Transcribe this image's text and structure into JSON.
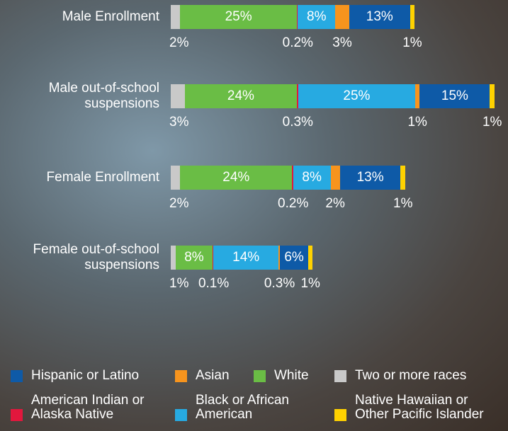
{
  "chart_data": {
    "type": "stacked_bar_horizontal",
    "categories": [
      "Male Enrollment",
      "Male out-of-school suspensions",
      "Female Enrollment",
      "Female out-of-school suspensions"
    ],
    "xlim": [
      0,
      69.3
    ],
    "series": [
      {
        "name": "Two or more races",
        "color": "#c9c9c9",
        "values": [
          2,
          3,
          2,
          1
        ],
        "value_labels": [
          "2%",
          "3%",
          "2%",
          "1%"
        ]
      },
      {
        "name": "White",
        "color": "#6abd45",
        "values": [
          25,
          24,
          24,
          8
        ],
        "value_labels": [
          "25%",
          "24%",
          "24%",
          "8%"
        ]
      },
      {
        "name": "American Indian or Alaska Native",
        "color": "#e2173d",
        "values": [
          0.2,
          0.3,
          0.2,
          0.1
        ],
        "value_labels": [
          "0.2%",
          "0.3%",
          "0.2%",
          "0.1%"
        ]
      },
      {
        "name": "Black or African American",
        "color": "#27aae1",
        "values": [
          8,
          25,
          8,
          14
        ],
        "value_labels": [
          "8%",
          "25%",
          "8%",
          "14%"
        ]
      },
      {
        "name": "Asian",
        "color": "#f7941d",
        "values": [
          3,
          1,
          2,
          0.3
        ],
        "value_labels": [
          "3%",
          "1%",
          "2%",
          "0.3%"
        ]
      },
      {
        "name": "Hispanic or Latino",
        "color": "#0e5aa7",
        "values": [
          13,
          15,
          13,
          6
        ],
        "value_labels": [
          "13%",
          "15%",
          "13%",
          "6%"
        ]
      },
      {
        "name": "Native Hawaiian or Other Pacific Islander",
        "color": "#ffd200",
        "values": [
          1,
          1,
          1,
          1
        ],
        "value_labels": [
          "1%",
          "1%",
          "1%",
          "1%"
        ]
      }
    ]
  }
}
